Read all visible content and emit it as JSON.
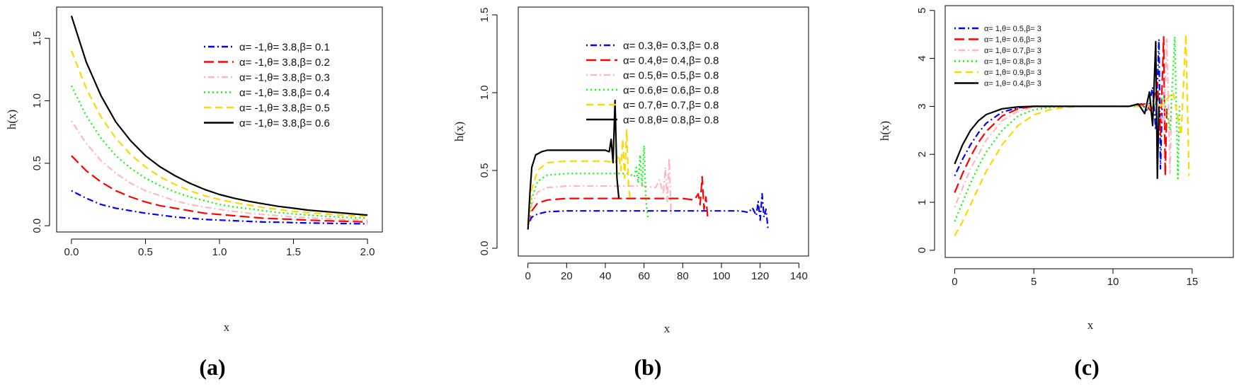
{
  "chart_data": [
    {
      "type": "line",
      "panel_label": "(a)",
      "xlabel": "x",
      "ylabel": "h(x)",
      "xlim": [
        -0.1,
        2.1
      ],
      "ylim": [
        -0.05,
        1.75
      ],
      "xticks": [
        "0.0",
        "0.5",
        "1.0",
        "1.5",
        "2.0"
      ],
      "xtick_values": [
        0,
        0.5,
        1,
        1.5,
        2
      ],
      "yticks": [
        "0.0",
        "0.5",
        "1.0",
        "1.5"
      ],
      "ytick_values": [
        0,
        0.5,
        1,
        1.5
      ],
      "legend_position": "top-right",
      "x": [
        0,
        0.1,
        0.2,
        0.3,
        0.4,
        0.5,
        0.6,
        0.7,
        0.8,
        0.9,
        1.0,
        1.1,
        1.2,
        1.3,
        1.4,
        1.5,
        1.6,
        1.7,
        1.8,
        1.9,
        2.0
      ],
      "series": [
        {
          "name": "α= -1,θ= 3.8,β= 0.1",
          "color": "#0000ff",
          "dash": "dotdash",
          "values": [
            0.28,
            0.22,
            0.17,
            0.14,
            0.12,
            0.1,
            0.085,
            0.07,
            0.06,
            0.05,
            0.045,
            0.04,
            0.035,
            0.03,
            0.028,
            0.025,
            0.022,
            0.02,
            0.018,
            0.017,
            0.015
          ]
        },
        {
          "name": "α= -1,θ= 3.8,β= 0.2",
          "color": "#ff0000",
          "dash": "longdash",
          "values": [
            0.56,
            0.44,
            0.35,
            0.28,
            0.23,
            0.19,
            0.16,
            0.14,
            0.12,
            0.1,
            0.09,
            0.08,
            0.07,
            0.06,
            0.055,
            0.05,
            0.045,
            0.04,
            0.037,
            0.034,
            0.03
          ]
        },
        {
          "name": "α= -1,θ= 3.8,β= 0.3",
          "color": "#ffb6c1",
          "dash": "dotdash",
          "values": [
            0.84,
            0.66,
            0.52,
            0.42,
            0.34,
            0.28,
            0.24,
            0.2,
            0.17,
            0.15,
            0.13,
            0.115,
            0.1,
            0.09,
            0.08,
            0.07,
            0.063,
            0.057,
            0.052,
            0.048,
            0.045
          ]
        },
        {
          "name": "α= -1,θ= 3.8,β= 0.4",
          "color": "#00ff00",
          "dash": "dotted",
          "values": [
            1.12,
            0.88,
            0.7,
            0.56,
            0.46,
            0.38,
            0.32,
            0.27,
            0.23,
            0.2,
            0.17,
            0.15,
            0.135,
            0.12,
            0.105,
            0.095,
            0.085,
            0.077,
            0.07,
            0.064,
            0.06
          ]
        },
        {
          "name": "α= -1,θ= 3.8,β= 0.5",
          "color": "#ffd700",
          "dash": "dashed",
          "values": [
            1.4,
            1.1,
            0.87,
            0.7,
            0.57,
            0.47,
            0.39,
            0.33,
            0.28,
            0.24,
            0.21,
            0.185,
            0.165,
            0.145,
            0.13,
            0.115,
            0.105,
            0.095,
            0.087,
            0.08,
            0.075
          ]
        },
        {
          "name": "α= -1,θ= 3.8,β= 0.6",
          "color": "#000000",
          "dash": "solid",
          "values": [
            1.68,
            1.31,
            1.04,
            0.83,
            0.68,
            0.56,
            0.47,
            0.4,
            0.34,
            0.29,
            0.25,
            0.22,
            0.195,
            0.175,
            0.155,
            0.14,
            0.125,
            0.115,
            0.105,
            0.095,
            0.085
          ]
        }
      ]
    },
    {
      "type": "line",
      "panel_label": "(b)",
      "xlabel": "x",
      "ylabel": "h(x)",
      "xlim": [
        -5,
        145
      ],
      "ylim": [
        -0.05,
        1.55
      ],
      "xticks": [
        "0",
        "20",
        "40",
        "60",
        "80",
        "100",
        "120",
        "140"
      ],
      "xtick_values": [
        0,
        20,
        40,
        60,
        80,
        100,
        120,
        140
      ],
      "yticks": [
        "0.0",
        "0.5",
        "1.0",
        "1.5"
      ],
      "ytick_values": [
        0,
        0.5,
        1,
        1.5
      ],
      "legend_position": "top-right",
      "series": [
        {
          "name": "α= 0.3,θ= 0.3,β= 0.8",
          "color": "#0000ff",
          "dash": "dotdash",
          "plateau": 0.24,
          "end_x": 121,
          "end_y": 0.13,
          "x": [
            0,
            2,
            5,
            10,
            20,
            40,
            60,
            80,
            100,
            110,
            114,
            116,
            118,
            119,
            120,
            121,
            122,
            123,
            124
          ],
          "values": [
            0.15,
            0.2,
            0.22,
            0.235,
            0.24,
            0.24,
            0.24,
            0.24,
            0.24,
            0.24,
            0.23,
            0.26,
            0.21,
            0.3,
            0.18,
            0.35,
            0.2,
            0.25,
            0.13
          ]
        },
        {
          "name": "α= 0.4,θ= 0.4,β= 0.8",
          "color": "#ff0000",
          "dash": "longdash",
          "x": [
            0,
            2,
            5,
            10,
            20,
            40,
            60,
            80,
            86,
            88,
            89,
            90,
            91,
            92,
            93
          ],
          "values": [
            0.15,
            0.24,
            0.29,
            0.31,
            0.32,
            0.32,
            0.32,
            0.32,
            0.31,
            0.35,
            0.28,
            0.46,
            0.25,
            0.33,
            0.18
          ]
        },
        {
          "name": "α= 0.5,θ= 0.5,β= 0.8",
          "color": "#ffb6c1",
          "dash": "dotdash",
          "x": [
            0,
            2,
            5,
            10,
            20,
            40,
            60,
            66,
            68,
            70,
            71,
            72,
            73,
            74
          ],
          "values": [
            0.15,
            0.28,
            0.36,
            0.39,
            0.4,
            0.4,
            0.4,
            0.39,
            0.44,
            0.35,
            0.52,
            0.3,
            0.58,
            0.22
          ]
        },
        {
          "name": "α= 0.6,θ= 0.6,β= 0.8",
          "color": "#00ff00",
          "dash": "dotted",
          "x": [
            0,
            2,
            5,
            10,
            20,
            40,
            52,
            55,
            56,
            57,
            58,
            59,
            60,
            61,
            62
          ],
          "values": [
            0.15,
            0.32,
            0.43,
            0.47,
            0.48,
            0.48,
            0.48,
            0.46,
            0.52,
            0.42,
            0.6,
            0.4,
            0.66,
            0.3,
            0.2
          ]
        },
        {
          "name": "α= 0.7,θ= 0.7,β= 0.8",
          "color": "#ffd700",
          "dash": "dashed",
          "x": [
            0,
            2,
            5,
            10,
            20,
            40,
            45,
            47,
            48,
            49,
            50,
            51,
            52,
            53
          ],
          "values": [
            0.15,
            0.38,
            0.5,
            0.55,
            0.56,
            0.56,
            0.55,
            0.6,
            0.5,
            0.7,
            0.45,
            0.76,
            0.4,
            0.3
          ]
        },
        {
          "name": "α= 0.8,θ= 0.8,β= 0.8",
          "color": "#000000",
          "dash": "solid",
          "x": [
            0,
            1,
            2,
            4,
            7,
            10,
            20,
            30,
            40,
            42,
            43,
            44,
            45,
            46,
            47
          ],
          "values": [
            0.12,
            0.35,
            0.52,
            0.6,
            0.62,
            0.63,
            0.63,
            0.63,
            0.63,
            0.62,
            0.7,
            0.55,
            0.95,
            0.45,
            0.32
          ]
        }
      ]
    },
    {
      "type": "line",
      "panel_label": "(c)",
      "xlabel": "x",
      "ylabel": "h(x)",
      "xlim": [
        -0.6,
        17.6
      ],
      "ylim": [
        -0.15,
        5.1
      ],
      "xticks": [
        "0",
        "5",
        "10",
        "15"
      ],
      "xtick_values": [
        0,
        5,
        10,
        15
      ],
      "yticks": [
        "0",
        "1",
        "2",
        "3",
        "4",
        "5"
      ],
      "ytick_values": [
        0,
        1,
        2,
        3,
        4,
        5
      ],
      "legend_position": "top-left",
      "series": [
        {
          "name": "α= 1,θ= 0.5,β= 3",
          "color": "#0000ff",
          "dash": "dotdash",
          "x": [
            0,
            0.5,
            1,
            1.5,
            2,
            3,
            4,
            5,
            8,
            11,
            11.8,
            12.2,
            12.5,
            12.7,
            12.9,
            13.0,
            13.1
          ],
          "values": [
            1.55,
            1.9,
            2.2,
            2.45,
            2.65,
            2.88,
            2.97,
            3.0,
            3.0,
            3.0,
            3.05,
            2.9,
            3.4,
            2.5,
            4.4,
            1.7,
            3.0
          ]
        },
        {
          "name": "α= 1,θ= 0.6,β= 3",
          "color": "#ff0000",
          "dash": "longdash",
          "x": [
            0,
            0.5,
            1,
            1.5,
            2,
            3,
            4,
            5,
            8,
            11,
            12,
            12.4,
            12.8,
            13.0,
            13.2,
            13.3,
            13.4
          ],
          "values": [
            1.2,
            1.6,
            1.95,
            2.25,
            2.48,
            2.8,
            2.95,
            3.0,
            3.0,
            3.0,
            3.05,
            2.9,
            3.5,
            2.4,
            4.45,
            1.55,
            3.0
          ]
        },
        {
          "name": "α= 1,θ= 0.7,β= 3",
          "color": "#ffb6c1",
          "dash": "dotdash",
          "x": [
            0,
            0.5,
            1,
            1.5,
            2,
            3,
            4,
            5,
            6,
            8,
            11,
            12,
            12.8,
            13.2,
            13.4,
            13.6,
            13.7
          ],
          "values": [
            0.9,
            1.3,
            1.7,
            2.0,
            2.3,
            2.7,
            2.9,
            2.98,
            3.0,
            3.0,
            3.0,
            3.0,
            3.1,
            2.6,
            4.4,
            1.6,
            3.0
          ]
        },
        {
          "name": "α= 1,θ= 0.8,β= 3",
          "color": "#00ff00",
          "dash": "dotted",
          "x": [
            0,
            0.5,
            1,
            1.5,
            2,
            3,
            4,
            5,
            6,
            7,
            11,
            12.5,
            13.2,
            13.6,
            13.9,
            14.1,
            14.2
          ],
          "values": [
            0.6,
            1.0,
            1.4,
            1.75,
            2.05,
            2.5,
            2.8,
            2.93,
            2.98,
            3.0,
            3.0,
            3.0,
            3.2,
            2.5,
            4.45,
            1.5,
            3.0
          ]
        },
        {
          "name": "α= 1,θ= 0.9,β= 3",
          "color": "#ffd700",
          "dash": "dashed",
          "x": [
            0,
            0.5,
            1,
            1.5,
            2,
            3,
            4,
            5,
            6,
            7,
            8,
            11,
            13,
            13.8,
            14.3,
            14.6,
            14.8
          ],
          "values": [
            0.3,
            0.6,
            0.95,
            1.3,
            1.65,
            2.2,
            2.6,
            2.82,
            2.93,
            2.98,
            3.0,
            3.0,
            3.0,
            3.3,
            2.4,
            4.5,
            1.55
          ]
        },
        {
          "name": "α= 1,θ= 0.4,β= 3",
          "color": "#000000",
          "dash": "solid",
          "x": [
            0,
            0.5,
            1,
            1.5,
            2,
            3,
            4,
            5,
            8,
            11,
            11.6,
            12.0,
            12.3,
            12.5,
            12.7,
            12.8,
            12.9
          ],
          "values": [
            1.8,
            2.2,
            2.5,
            2.7,
            2.83,
            2.95,
            2.99,
            3.0,
            3.0,
            3.0,
            3.05,
            2.85,
            3.3,
            2.6,
            4.35,
            1.5,
            3.0
          ]
        }
      ]
    }
  ]
}
